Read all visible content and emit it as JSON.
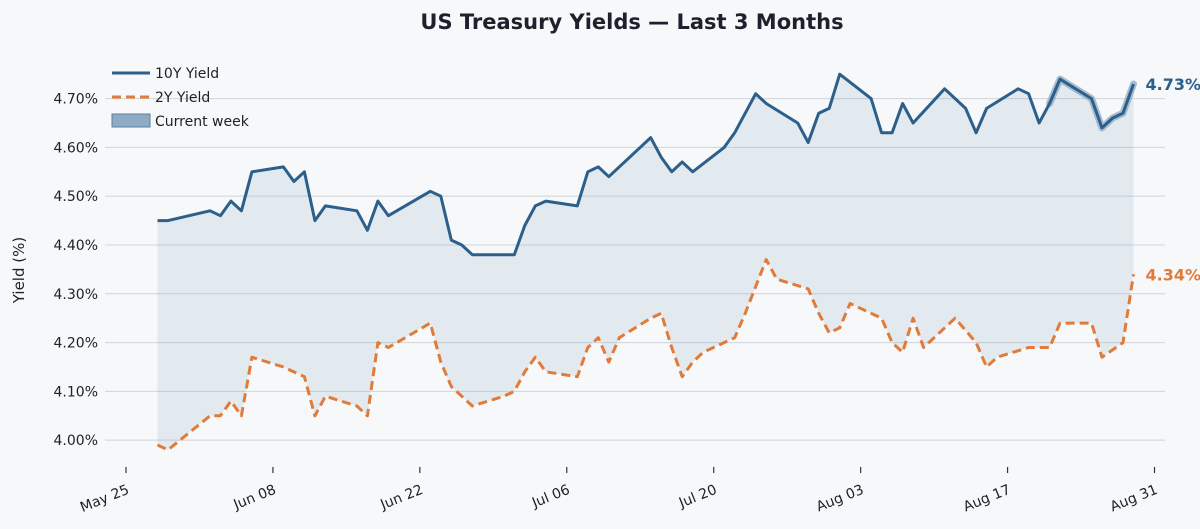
{
  "chart_data": {
    "type": "line",
    "title": "US Treasury Yields — Last 3 Months",
    "ylabel": "Yield (%)",
    "xlabel": "",
    "ylim": [
      3.945,
      4.775
    ],
    "y_ticks": [
      4.0,
      4.1,
      4.2,
      4.3,
      4.4,
      4.5,
      4.6,
      4.7
    ],
    "y_tick_labels": [
      "4.00%",
      "4.10%",
      "4.20%",
      "4.30%",
      "4.40%",
      "4.50%",
      "4.60%",
      "4.70%"
    ],
    "xlim": [
      "2025-05-23",
      "2025-09-01"
    ],
    "x_ticks": [
      "2025-05-25",
      "2025-06-08",
      "2025-06-22",
      "2025-07-06",
      "2025-07-20",
      "2025-08-03",
      "2025-08-17",
      "2025-08-31"
    ],
    "x_tick_labels": [
      "May 25",
      "Jun 08",
      "Jun 22",
      "Jul 06",
      "Jul 20",
      "Aug 03",
      "Aug 17",
      "Aug 31"
    ],
    "grid": "horizontal",
    "legend_position": "top-left",
    "current_week_start": "2025-08-21",
    "series": [
      {
        "name": "10Y Yield",
        "color": "#2c5f8a",
        "style": "solid",
        "end_label": "4.73%",
        "points": [
          [
            "2025-05-28",
            4.45
          ],
          [
            "2025-05-29",
            4.45
          ],
          [
            "2025-06-02",
            4.47
          ],
          [
            "2025-06-03",
            4.46
          ],
          [
            "2025-06-04",
            4.49
          ],
          [
            "2025-06-05",
            4.47
          ],
          [
            "2025-06-06",
            4.55
          ],
          [
            "2025-06-09",
            4.56
          ],
          [
            "2025-06-10",
            4.53
          ],
          [
            "2025-06-11",
            4.55
          ],
          [
            "2025-06-12",
            4.45
          ],
          [
            "2025-06-13",
            4.48
          ],
          [
            "2025-06-16",
            4.47
          ],
          [
            "2025-06-17",
            4.43
          ],
          [
            "2025-06-18",
            4.49
          ],
          [
            "2025-06-19",
            4.46
          ],
          [
            "2025-06-23",
            4.51
          ],
          [
            "2025-06-24",
            4.5
          ],
          [
            "2025-06-25",
            4.41
          ],
          [
            "2025-06-26",
            4.4
          ],
          [
            "2025-06-27",
            4.38
          ],
          [
            "2025-06-30",
            4.38
          ],
          [
            "2025-07-01",
            4.38
          ],
          [
            "2025-07-02",
            4.44
          ],
          [
            "2025-07-03",
            4.48
          ],
          [
            "2025-07-04",
            4.49
          ],
          [
            "2025-07-07",
            4.48
          ],
          [
            "2025-07-08",
            4.55
          ],
          [
            "2025-07-09",
            4.56
          ],
          [
            "2025-07-10",
            4.54
          ],
          [
            "2025-07-14",
            4.62
          ],
          [
            "2025-07-15",
            4.58
          ],
          [
            "2025-07-16",
            4.55
          ],
          [
            "2025-07-17",
            4.57
          ],
          [
            "2025-07-18",
            4.55
          ],
          [
            "2025-07-21",
            4.6
          ],
          [
            "2025-07-22",
            4.63
          ],
          [
            "2025-07-24",
            4.71
          ],
          [
            "2025-07-25",
            4.69
          ],
          [
            "2025-07-28",
            4.65
          ],
          [
            "2025-07-29",
            4.61
          ],
          [
            "2025-07-30",
            4.67
          ],
          [
            "2025-07-31",
            4.68
          ],
          [
            "2025-08-01",
            4.75
          ],
          [
            "2025-08-04",
            4.7
          ],
          [
            "2025-08-05",
            4.63
          ],
          [
            "2025-08-06",
            4.63
          ],
          [
            "2025-08-07",
            4.69
          ],
          [
            "2025-08-08",
            4.65
          ],
          [
            "2025-08-11",
            4.72
          ],
          [
            "2025-08-13",
            4.68
          ],
          [
            "2025-08-14",
            4.63
          ],
          [
            "2025-08-15",
            4.68
          ],
          [
            "2025-08-18",
            4.72
          ],
          [
            "2025-08-19",
            4.71
          ],
          [
            "2025-08-20",
            4.65
          ],
          [
            "2025-08-21",
            4.69
          ],
          [
            "2025-08-22",
            4.74
          ],
          [
            "2025-08-25",
            4.7
          ],
          [
            "2025-08-26",
            4.64
          ],
          [
            "2025-08-27",
            4.66
          ],
          [
            "2025-08-28",
            4.67
          ],
          [
            "2025-08-29",
            4.73
          ]
        ]
      },
      {
        "name": "2Y Yield",
        "color": "#e07b39",
        "style": "dashed",
        "end_label": "4.34%",
        "points": [
          [
            "2025-05-28",
            3.99
          ],
          [
            "2025-05-29",
            3.98
          ],
          [
            "2025-06-02",
            4.05
          ],
          [
            "2025-06-03",
            4.05
          ],
          [
            "2025-06-04",
            4.08
          ],
          [
            "2025-06-05",
            4.05
          ],
          [
            "2025-06-06",
            4.17
          ],
          [
            "2025-06-09",
            4.15
          ],
          [
            "2025-06-11",
            4.13
          ],
          [
            "2025-06-12",
            4.05
          ],
          [
            "2025-06-13",
            4.09
          ],
          [
            "2025-06-16",
            4.07
          ],
          [
            "2025-06-17",
            4.05
          ],
          [
            "2025-06-18",
            4.2
          ],
          [
            "2025-06-19",
            4.19
          ],
          [
            "2025-06-23",
            4.24
          ],
          [
            "2025-06-24",
            4.16
          ],
          [
            "2025-06-25",
            4.11
          ],
          [
            "2025-06-27",
            4.07
          ],
          [
            "2025-06-30",
            4.09
          ],
          [
            "2025-07-01",
            4.1
          ],
          [
            "2025-07-02",
            4.14
          ],
          [
            "2025-07-03",
            4.17
          ],
          [
            "2025-07-04",
            4.14
          ],
          [
            "2025-07-07",
            4.13
          ],
          [
            "2025-07-08",
            4.19
          ],
          [
            "2025-07-09",
            4.21
          ],
          [
            "2025-07-10",
            4.16
          ],
          [
            "2025-07-11",
            4.21
          ],
          [
            "2025-07-14",
            4.25
          ],
          [
            "2025-07-15",
            4.26
          ],
          [
            "2025-07-16",
            4.19
          ],
          [
            "2025-07-17",
            4.13
          ],
          [
            "2025-07-18",
            4.16
          ],
          [
            "2025-07-19",
            4.18
          ],
          [
            "2025-07-22",
            4.21
          ],
          [
            "2025-07-23",
            4.26
          ],
          [
            "2025-07-25",
            4.37
          ],
          [
            "2025-07-26",
            4.33
          ],
          [
            "2025-07-29",
            4.31
          ],
          [
            "2025-07-30",
            4.26
          ],
          [
            "2025-07-31",
            4.22
          ],
          [
            "2025-08-01",
            4.23
          ],
          [
            "2025-08-02",
            4.28
          ],
          [
            "2025-08-05",
            4.25
          ],
          [
            "2025-08-06",
            4.2
          ],
          [
            "2025-08-07",
            4.18
          ],
          [
            "2025-08-08",
            4.25
          ],
          [
            "2025-08-09",
            4.19
          ],
          [
            "2025-08-12",
            4.25
          ],
          [
            "2025-08-14",
            4.2
          ],
          [
            "2025-08-15",
            4.15
          ],
          [
            "2025-08-16",
            4.17
          ],
          [
            "2025-08-19",
            4.19
          ],
          [
            "2025-08-21",
            4.19
          ],
          [
            "2025-08-22",
            4.24
          ],
          [
            "2025-08-25",
            4.24
          ],
          [
            "2025-08-26",
            4.17
          ],
          [
            "2025-08-28",
            4.2
          ],
          [
            "2025-08-29",
            4.34
          ]
        ]
      }
    ],
    "legend": [
      {
        "label": "10Y Yield",
        "kind": "line",
        "color": "#2c5f8a"
      },
      {
        "label": "2Y Yield",
        "kind": "dashed-line",
        "color": "#e07b39"
      },
      {
        "label": "Current week",
        "kind": "patch",
        "color": "#8faac4"
      }
    ]
  }
}
